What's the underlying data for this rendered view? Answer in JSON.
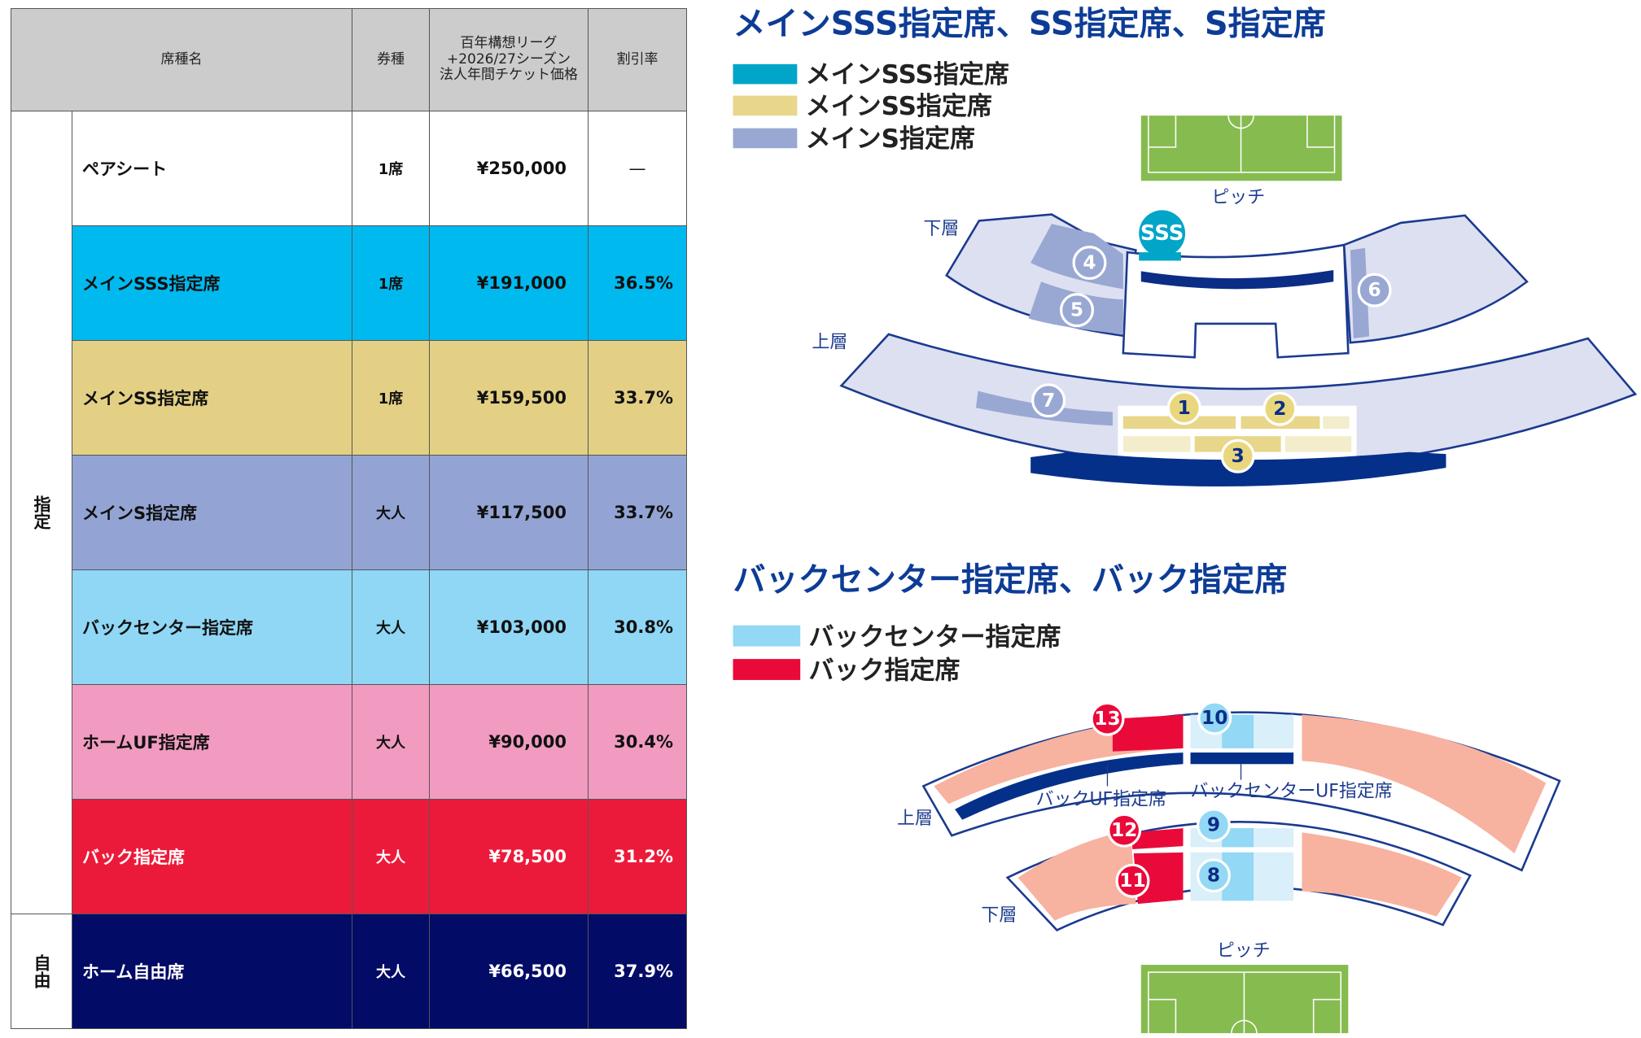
{
  "table": {
    "headers": {
      "name": "席種名",
      "type": "券種",
      "price_l1": "百年構想リーグ",
      "price_l2": "+2026/27シーズン",
      "price_l3": "法人年間チケット価格",
      "discount": "割引率"
    },
    "groups": {
      "reserved": "指定",
      "free": "自由"
    },
    "rows": [
      {
        "name": "ペアシート",
        "type": "1席",
        "price": "¥250,000",
        "discount": "—",
        "bg": "#ffffff",
        "fg": "#111111"
      },
      {
        "name": "メインSSS指定席",
        "type": "1席",
        "price": "¥191,000",
        "discount": "36.5%",
        "bg": "#00b9ef",
        "fg": "#111111"
      },
      {
        "name": "メインSS指定席",
        "type": "1席",
        "price": "¥159,500",
        "discount": "33.7%",
        "bg": "#e3d085",
        "fg": "#111111"
      },
      {
        "name": "メインS指定席",
        "type": "大人",
        "price": "¥117,500",
        "discount": "33.7%",
        "bg": "#93a4d4",
        "fg": "#111111"
      },
      {
        "name": "バックセンター指定席",
        "type": "大人",
        "price": "¥103,000",
        "discount": "30.8%",
        "bg": "#8fd7f5",
        "fg": "#111111"
      },
      {
        "name": "ホームUF指定席",
        "type": "大人",
        "price": "¥90,000",
        "discount": "30.4%",
        "bg": "#f19bc1",
        "fg": "#111111"
      },
      {
        "name": "バック指定席",
        "type": "大人",
        "price": "¥78,500",
        "discount": "31.2%",
        "bg": "#ec1a3a",
        "fg": "#ffffff"
      },
      {
        "name": "ホーム自由席",
        "type": "大人",
        "price": "¥66,500",
        "discount": "37.9%",
        "bg": "#020b66",
        "fg": "#ffffff"
      }
    ]
  },
  "main_map": {
    "title": "メインSSS指定席、SS指定席、S指定席",
    "legend": [
      {
        "label": "メインSSS指定席",
        "color": "#00a5c8"
      },
      {
        "label": "メインSS指定席",
        "color": "#e8d68a"
      },
      {
        "label": "メインS指定席",
        "color": "#99a7d3"
      }
    ],
    "pitch_label": "ピッチ",
    "lower_label": "下層",
    "upper_label": "上層",
    "sss_badge": "SSS",
    "sections": [
      "1",
      "2",
      "3",
      "4",
      "5",
      "6",
      "7"
    ]
  },
  "back_map": {
    "title": "バックセンター指定席、バック指定席",
    "legend": [
      {
        "label": "バックセンター指定席",
        "color": "#93d8f5"
      },
      {
        "label": "バック指定席",
        "color": "#ea0a3a"
      }
    ],
    "back_uf_label": "バックUF指定席",
    "back_center_uf_label": "バックセンターUF指定席",
    "upper_label": "上層",
    "lower_label": "下層",
    "pitch_label": "ピッチ",
    "sections": [
      "8",
      "9",
      "10",
      "11",
      "12",
      "13"
    ]
  }
}
